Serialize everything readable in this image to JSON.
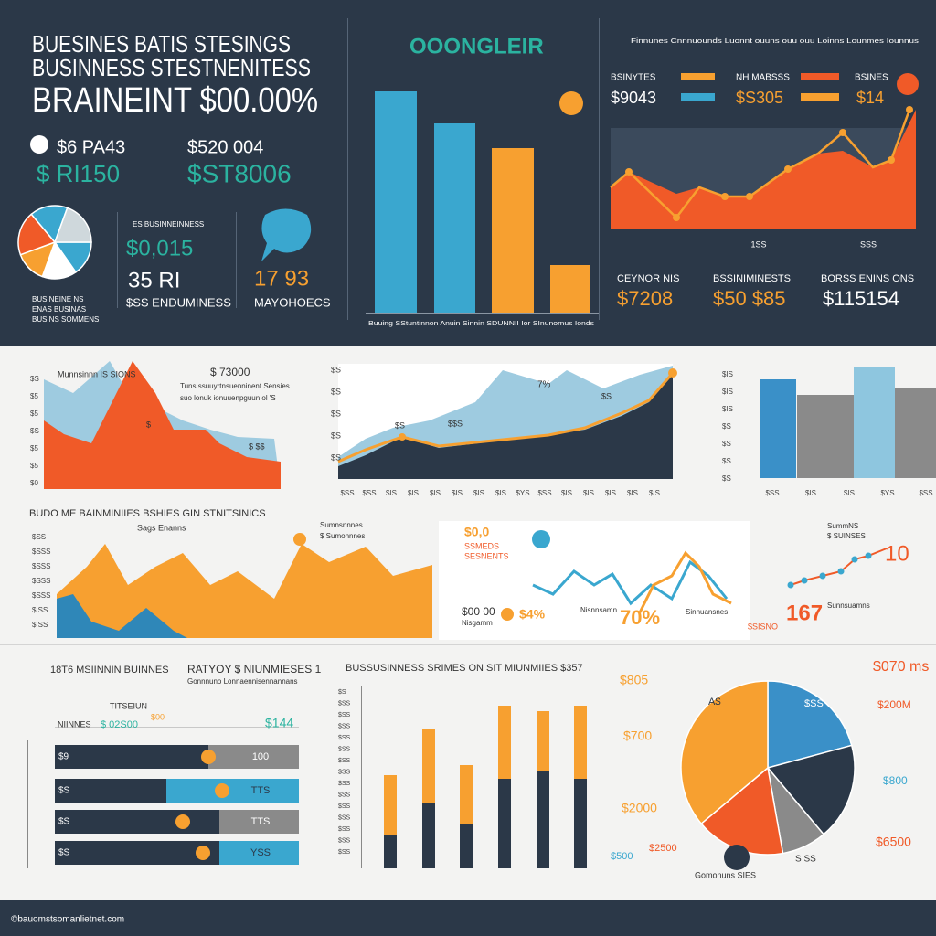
{
  "header": {
    "title_lines": [
      "BUESINES BATIS STESINGS",
      "BUSINNESS STESTNENITESS",
      "BRAINEINT $00.00%"
    ]
  },
  "kpis": [
    {
      "label": "$6 PA43",
      "value": "$ RI150"
    },
    {
      "label": "$520 004",
      "value": "$ST8006"
    }
  ],
  "pie_panel": {
    "labels": [
      "BUSINEINE NS",
      "ENAS BUSINAS",
      "BUSINS SOMMENS"
    ],
    "note": "ES BUSINNEINNESS",
    "metric": "$0,015",
    "sub": "35 RI",
    "caption": "$SS ENDUMINESS"
  },
  "chat_panel": {
    "value": "17 93",
    "caption": "MAYOHOECS"
  },
  "bar_panel": {
    "title": "OOONGLEIR",
    "caption": "Buuing SStuntinnon Anuin Sinnin SDUNNII Ior SInunomus Ionds"
  },
  "trend_panel": {
    "header": "Finnunes Cnnnuounds Luonnt ouuns ouu ouu Loinns Lounmes Iounnus",
    "legend": [
      {
        "name": "BSINYTES",
        "value": "$9043"
      },
      {
        "name": "NH MABSSS",
        "value": "$S305"
      },
      {
        "name": "BSINES",
        "value": "$14"
      }
    ],
    "x_labels": [
      "1SS",
      "SSS"
    ],
    "stats": [
      {
        "label": "CEYNOR NIS",
        "value": "$7208"
      },
      {
        "label": "BSSINIMINESTS",
        "value": "$50 $85"
      },
      {
        "label": "BORSS ENINS ONS",
        "value": "$115154"
      }
    ]
  },
  "middle": {
    "area_left": {
      "y_labels": [
        "$S",
        "$5",
        "$5",
        "$S",
        "$5",
        "$5",
        "$0"
      ],
      "label": "Munnsinnn IS SIONS",
      "callout": "$ 73000",
      "text_lines": [
        "Tuns ssuuyrtnsuenninent Sensies",
        "suo lonuk ionuuenpguun ol 'S"
      ],
      "point_labels": [
        "$",
        "$ $$"
      ]
    },
    "area_mid": {
      "y_labels": [
        "$S",
        "$S",
        "$S",
        "$S",
        "$S"
      ],
      "x_labels": [
        "$SS",
        "$SS",
        "$IS",
        "$IS",
        "$IS",
        "$IS",
        "$IS",
        "$IS",
        "$YS",
        "$SS",
        "$IS",
        "$IS",
        "$IS",
        "$IS",
        "$IS"
      ],
      "point_labels": [
        "$S",
        "$$S",
        "7%",
        "$S"
      ]
    },
    "bar_right": {
      "y_labels": [
        "$IS",
        "$IS",
        "$IS",
        "$S",
        "$S",
        "$S",
        "$S"
      ],
      "x_labels": [
        "$SS",
        "$IS",
        "$IS",
        "$YS",
        "$SS"
      ]
    },
    "row2": {
      "title": "BUDO ME BAINMINIIES BSHIES GIN STNITSINICS",
      "subtitle": "Sags Enanns",
      "y_labels": [
        "$SS",
        "$SSS",
        "$SSS",
        "$SSS",
        "$SSS",
        "$ SS",
        "$ SS"
      ],
      "callout": [
        "Sumnsnnnes",
        "$ Sumonnnes"
      ],
      "line_labels": [
        "$0,0",
        "SSMEDS",
        "SESNENTS",
        "$00 00",
        "Nisgamm",
        "$4%",
        "70%",
        "Nisnnsamn",
        "Sinnuansnes"
      ],
      "right_labels": [
        "SummNS",
        "$ SUINSES",
        "10",
        "167",
        "$SISNO",
        "Sunnsuamns"
      ]
    }
  },
  "bottom": {
    "left": {
      "title": "18T6 MSIINNIN BUINNES",
      "title2": "RATYOY $ NIUNMIESES 1",
      "subtitle": "Gonnnuno Lonnaennisennannans",
      "header": [
        "NIINNES",
        "TITSEIUN",
        "$ 02S00",
        "$00",
        "$144"
      ],
      "rows": [
        {
          "label": "$9",
          "value": "100"
        },
        {
          "label": "$S",
          "value": "TTS"
        },
        {
          "label": "$S",
          "value": "TTS"
        },
        {
          "label": "$S",
          "value": "YSS"
        }
      ]
    },
    "middle": {
      "title": "BUSSUSINNESS SRIMES ON SIT MIUNMIIES $357",
      "y_labels": [
        "$S",
        "$SS",
        "$SS",
        "$SS",
        "$SS",
        "$SS",
        "$SS",
        "$SS",
        "$SS",
        "$SS",
        "$SS",
        "$SS",
        "$SS",
        "$SS",
        "$SS"
      ]
    },
    "pie": {
      "labels": [
        "$070 ms",
        "$805",
        "$700",
        "$200M",
        "$2000",
        "$800",
        "$6500",
        "$500",
        "$2500",
        "Gomonuns SIES"
      ],
      "inner": [
        "A$",
        "$SS",
        "S SS"
      ]
    }
  },
  "footer": "©bauomstsomanlietnet.com"
}
